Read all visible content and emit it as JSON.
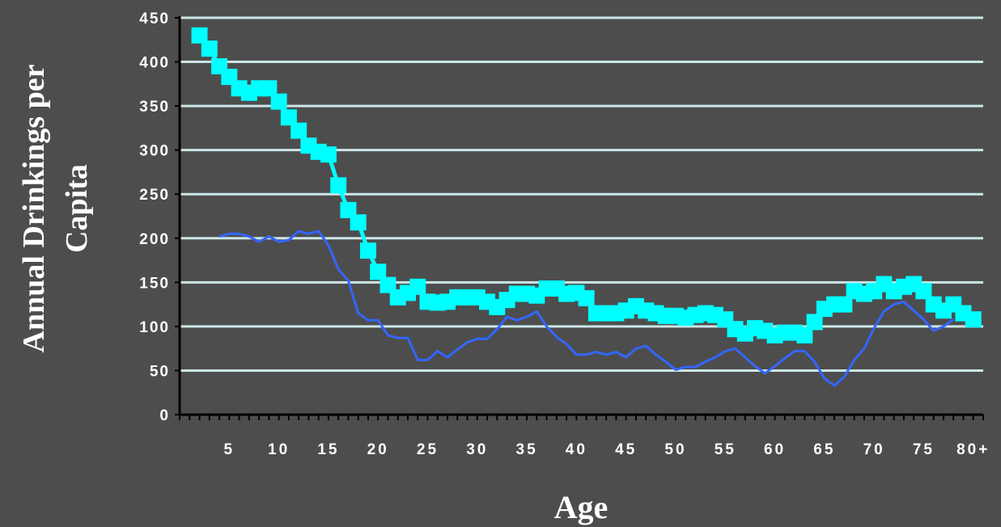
{
  "chart_data": {
    "type": "line",
    "title": "",
    "xlabel": "Age",
    "ylabel": [
      "Annual Drinkings per",
      "Capita"
    ],
    "ylim": [
      0,
      450
    ],
    "yticks": [
      "0",
      "50",
      "100",
      "150",
      "200",
      "250",
      "300",
      "350",
      "400",
      "450"
    ],
    "xlim": [
      0,
      81
    ],
    "xticks": [
      {
        "x": 5,
        "label": "5"
      },
      {
        "x": 10,
        "label": "10"
      },
      {
        "x": 15,
        "label": "15"
      },
      {
        "x": 20,
        "label": "20"
      },
      {
        "x": 25,
        "label": "25"
      },
      {
        "x": 30,
        "label": "30"
      },
      {
        "x": 35,
        "label": "35"
      },
      {
        "x": 40,
        "label": "40"
      },
      {
        "x": 45,
        "label": "45"
      },
      {
        "x": 50,
        "label": "50"
      },
      {
        "x": 55,
        "label": "55"
      },
      {
        "x": 60,
        "label": "60"
      },
      {
        "x": 65,
        "label": "65"
      },
      {
        "x": 70,
        "label": "70"
      },
      {
        "x": 75,
        "label": "75"
      },
      {
        "x": 80,
        "label": "80+"
      }
    ],
    "grid": true,
    "colors": {
      "background": "#4d4d4d",
      "gridline": "#cce6e6",
      "axis": "#000000",
      "text": "#ffffff"
    },
    "series": [
      {
        "color": "#00ffff",
        "marker": "square",
        "x": [
          2,
          3,
          4,
          5,
          6,
          7,
          8,
          9,
          10,
          11,
          12,
          13,
          14,
          15,
          16,
          17,
          18,
          19,
          20,
          21,
          22,
          23,
          24,
          25,
          26,
          27,
          28,
          29,
          30,
          31,
          32,
          33,
          34,
          35,
          36,
          37,
          38,
          39,
          40,
          41,
          42,
          43,
          44,
          45,
          46,
          47,
          48,
          49,
          50,
          51,
          52,
          53,
          54,
          55,
          56,
          57,
          58,
          59,
          60,
          61,
          62,
          63,
          64,
          65,
          66,
          67,
          68,
          69,
          70,
          71,
          72,
          73,
          74,
          75,
          76,
          77,
          78,
          79,
          80
        ],
        "values": [
          430,
          415,
          395,
          383,
          370,
          365,
          370,
          370,
          355,
          337,
          322,
          305,
          298,
          295,
          260,
          232,
          218,
          186,
          162,
          147,
          133,
          138,
          145,
          128,
          127,
          128,
          133,
          133,
          133,
          128,
          122,
          130,
          137,
          137,
          135,
          143,
          143,
          137,
          138,
          132,
          115,
          115,
          115,
          118,
          123,
          118,
          115,
          112,
          112,
          110,
          113,
          115,
          113,
          108,
          97,
          92,
          98,
          95,
          90,
          93,
          93,
          90,
          105,
          120,
          125,
          125,
          140,
          137,
          140,
          148,
          140,
          145,
          148,
          140,
          125,
          118,
          125,
          115,
          108
        ]
      },
      {
        "color": "#3366ff",
        "marker": "none",
        "x": [
          4,
          5,
          6,
          7,
          8,
          9,
          10,
          11,
          12,
          13,
          14,
          15,
          16,
          17,
          18,
          19,
          20,
          21,
          22,
          23,
          24,
          25,
          26,
          27,
          28,
          29,
          30,
          31,
          32,
          33,
          34,
          35,
          36,
          37,
          38,
          39,
          40,
          41,
          42,
          43,
          44,
          45,
          46,
          47,
          48,
          49,
          50,
          51,
          52,
          53,
          54,
          55,
          56,
          57,
          58,
          59,
          60,
          61,
          62,
          63,
          64,
          65,
          66,
          67,
          68,
          69,
          70,
          71,
          72,
          73,
          74,
          75,
          76,
          77,
          78
        ],
        "values": [
          202,
          205,
          205,
          202,
          196,
          202,
          196,
          198,
          208,
          205,
          208,
          192,
          165,
          152,
          115,
          107,
          107,
          90,
          87,
          87,
          62,
          62,
          72,
          65,
          74,
          82,
          86,
          86,
          97,
          111,
          107,
          111,
          117,
          100,
          88,
          80,
          68,
          68,
          71,
          68,
          71,
          65,
          75,
          78,
          68,
          60,
          51,
          54,
          54,
          60,
          65,
          72,
          75,
          65,
          55,
          47,
          55,
          64,
          72,
          72,
          60,
          41,
          33,
          43,
          62,
          75,
          98,
          117,
          125,
          128,
          118,
          108,
          95,
          100,
          108
        ]
      }
    ]
  }
}
